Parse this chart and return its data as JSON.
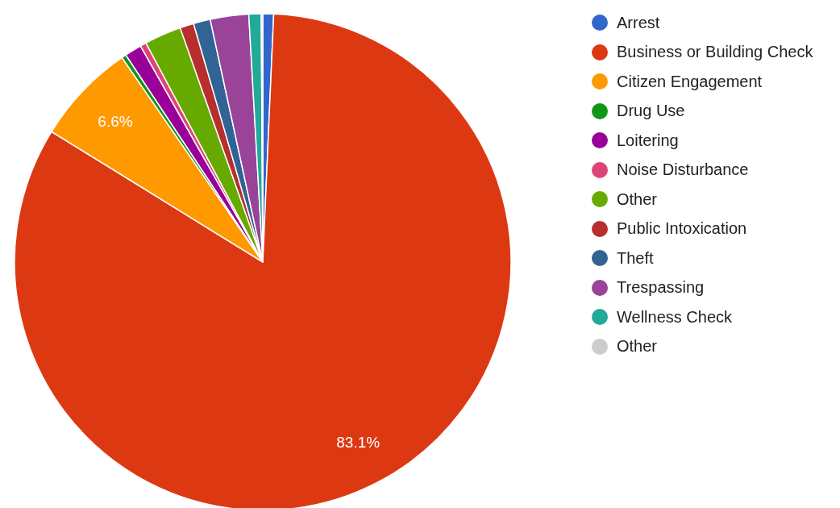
{
  "chart_data": {
    "type": "pie",
    "categories": [
      "Arrest",
      "Business or Building Check",
      "Citizen Engagement",
      "Drug Use",
      "Loitering",
      "Noise Disturbance",
      "Other",
      "Public Intoxication",
      "Theft",
      "Trespassing",
      "Wellness Check",
      "Other"
    ],
    "values": [
      0.7,
      83.1,
      6.6,
      0.3,
      1.1,
      0.4,
      2.4,
      0.9,
      1.1,
      2.5,
      0.8,
      0.1
    ],
    "colors": [
      "#3366cc",
      "#dc3912",
      "#ff9900",
      "#109618",
      "#990099",
      "#dd4477",
      "#66aa00",
      "#b82e2e",
      "#316395",
      "#994499",
      "#22aa99",
      "#cccccc"
    ],
    "value_labels": [
      null,
      "83.1%",
      "6.6%",
      null,
      null,
      null,
      null,
      null,
      null,
      null,
      null,
      null
    ],
    "legend": "right"
  }
}
